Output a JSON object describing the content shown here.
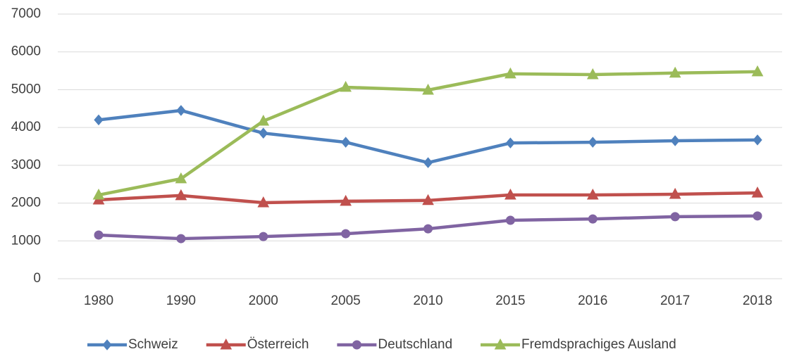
{
  "chart_data": {
    "type": "line",
    "categories": [
      "1980",
      "1990",
      "2000",
      "2005",
      "2010",
      "2015",
      "2016",
      "2017",
      "2018"
    ],
    "series": [
      {
        "name": "Schweiz",
        "color": "#4f81bd",
        "marker": "diamond",
        "values": [
          4200,
          4450,
          3850,
          3610,
          3070,
          3590,
          3610,
          3650,
          3670
        ]
      },
      {
        "name": "Österreich",
        "color": "#c0504d",
        "marker": "triangle",
        "values": [
          2085,
          2200,
          2010,
          2050,
          2070,
          2215,
          2215,
          2235,
          2270
        ]
      },
      {
        "name": "Deutschland",
        "color": "#8064a2",
        "marker": "circle",
        "values": [
          1155,
          1060,
          1115,
          1190,
          1320,
          1545,
          1580,
          1640,
          1660
        ]
      },
      {
        "name": "Fremdsprachiges Ausland",
        "color": "#9bbb59",
        "marker": "triangle",
        "values": [
          2215,
          2645,
          4170,
          5065,
          4990,
          5420,
          5400,
          5440,
          5475
        ]
      }
    ],
    "ylim": [
      0,
      7000
    ],
    "yticks": [
      0,
      1000,
      2000,
      3000,
      4000,
      5000,
      6000,
      7000
    ],
    "grid": true,
    "legend": "bottom"
  }
}
